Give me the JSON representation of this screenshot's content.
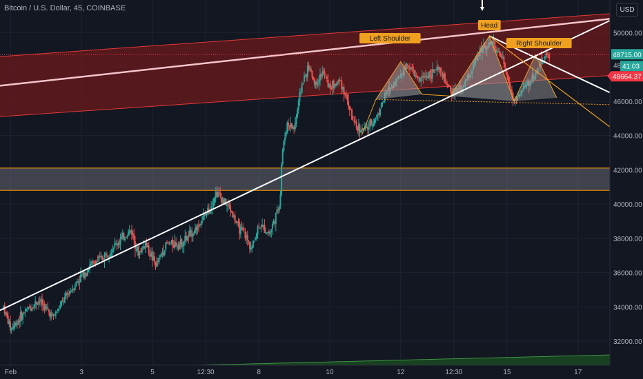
{
  "header": {
    "title": "Bitcoin / U.S. Dollar, 45, COINBASE",
    "currency_button": "USD"
  },
  "price_tags": {
    "last": "48715.00",
    "countdown": "41:03",
    "partial": "48",
    "bid": "48664.37"
  },
  "annotations": {
    "left_shoulder": "Left Shoulder",
    "head": "Head",
    "right_shoulder": "Right Shoulder"
  },
  "colors": {
    "background": "#131722",
    "up": "#26a69a",
    "down": "#ef5350",
    "channel_fill": "#8b1a1a",
    "channel_line": "#e53935",
    "trendline": "#ffffff",
    "label_bg": "#f0a020",
    "last_price_tag": "#26a69a",
    "bid_tag": "#f23645",
    "zone_border": "#ff9800"
  },
  "chart_data": {
    "type": "candlestick",
    "symbol": "Bitcoin / U.S. Dollar",
    "interval": "45",
    "exchange": "COINBASE",
    "y_axis": {
      "ticks": [
        32000,
        34000,
        36000,
        38000,
        40000,
        42000,
        44000,
        46000,
        48000,
        50000
      ],
      "tick_labels": [
        "32000.00",
        "34000.00",
        "36000.00",
        "38000.00",
        "40000.00",
        "42000.00",
        "44000.00",
        "46000.00",
        "48000.00",
        "50000.00"
      ],
      "range": [
        30600,
        51900
      ]
    },
    "x_axis": {
      "tick_labels": [
        "Feb",
        "3",
        "5",
        "12:30",
        "8",
        "10",
        "12",
        "12:30",
        "15",
        "17"
      ],
      "range_days": [
        0.7,
        17.9
      ]
    },
    "price_path": [
      [
        0.8,
        34000
      ],
      [
        1.0,
        32700
      ],
      [
        1.4,
        33700
      ],
      [
        1.8,
        34400
      ],
      [
        2.2,
        33400
      ],
      [
        2.6,
        34700
      ],
      [
        3.0,
        35800
      ],
      [
        3.3,
        36500
      ],
      [
        3.6,
        36900
      ],
      [
        4.0,
        37700
      ],
      [
        4.4,
        38500
      ],
      [
        4.6,
        37100
      ],
      [
        4.8,
        37700
      ],
      [
        5.1,
        36400
      ],
      [
        5.4,
        37700
      ],
      [
        5.8,
        37700
      ],
      [
        6.2,
        38500
      ],
      [
        6.6,
        39700
      ],
      [
        6.8,
        40700
      ],
      [
        7.0,
        40200
      ],
      [
        7.2,
        39700
      ],
      [
        7.4,
        38700
      ],
      [
        7.6,
        38200
      ],
      [
        7.8,
        37400
      ],
      [
        8.0,
        38800
      ],
      [
        8.3,
        38300
      ],
      [
        8.5,
        39400
      ],
      [
        8.6,
        40200
      ],
      [
        8.65,
        42900
      ],
      [
        8.8,
        44700
      ],
      [
        9.0,
        44400
      ],
      [
        9.2,
        46900
      ],
      [
        9.4,
        48000
      ],
      [
        9.6,
        47000
      ],
      [
        9.8,
        47700
      ],
      [
        10.0,
        46800
      ],
      [
        10.3,
        47200
      ],
      [
        10.5,
        46000
      ],
      [
        10.7,
        44500
      ],
      [
        11.0,
        44300
      ],
      [
        11.3,
        45000
      ],
      [
        11.6,
        46500
      ],
      [
        11.9,
        47300
      ],
      [
        12.2,
        48200
      ],
      [
        12.5,
        47200
      ],
      [
        12.8,
        47600
      ],
      [
        13.1,
        47800
      ],
      [
        13.4,
        46500
      ],
      [
        13.7,
        46700
      ],
      [
        14.0,
        47800
      ],
      [
        14.3,
        49200
      ],
      [
        14.6,
        49400
      ],
      [
        14.9,
        48200
      ],
      [
        15.2,
        46000
      ],
      [
        15.5,
        46800
      ],
      [
        15.8,
        47600
      ],
      [
        16.0,
        48500
      ],
      [
        16.2,
        48700
      ]
    ],
    "patterns": {
      "head_and_shoulders": {
        "points": [
          {
            "t": 11.3,
            "p": 46100
          },
          {
            "t": 12.0,
            "p": 48300
          },
          {
            "t": 12.6,
            "p": 46400
          },
          {
            "t": 13.4,
            "p": 46300
          },
          {
            "t": 14.5,
            "p": 49800
          },
          {
            "t": 15.2,
            "p": 46000
          },
          {
            "t": 15.8,
            "p": 48700
          },
          {
            "t": 16.4,
            "p": 46200
          }
        ],
        "labels": [
          "Left Shoulder",
          "Head",
          "Right Shoulder"
        ]
      },
      "rising_channel": {
        "upper_start": [
          0.7,
          48600
        ],
        "upper_end": [
          17.9,
          51100
        ],
        "lower_start": [
          0.7,
          45100
        ],
        "lower_end": [
          17.9,
          47500
        ]
      },
      "trendlines": [
        {
          "from": [
            0.7,
            33800
          ],
          "to": [
            17.9,
            50700
          ],
          "color": "white"
        },
        {
          "from": [
            14.5,
            49800
          ],
          "to": [
            17.9,
            46500
          ],
          "color": "white"
        },
        {
          "from": [
            14.5,
            49800
          ],
          "to": [
            17.9,
            44500
          ],
          "color": "orange"
        }
      ],
      "support_zone": {
        "top": 42100,
        "bottom": 40800
      }
    },
    "last_price": 48715.0,
    "bid_price": 48664.37,
    "grid": true
  }
}
